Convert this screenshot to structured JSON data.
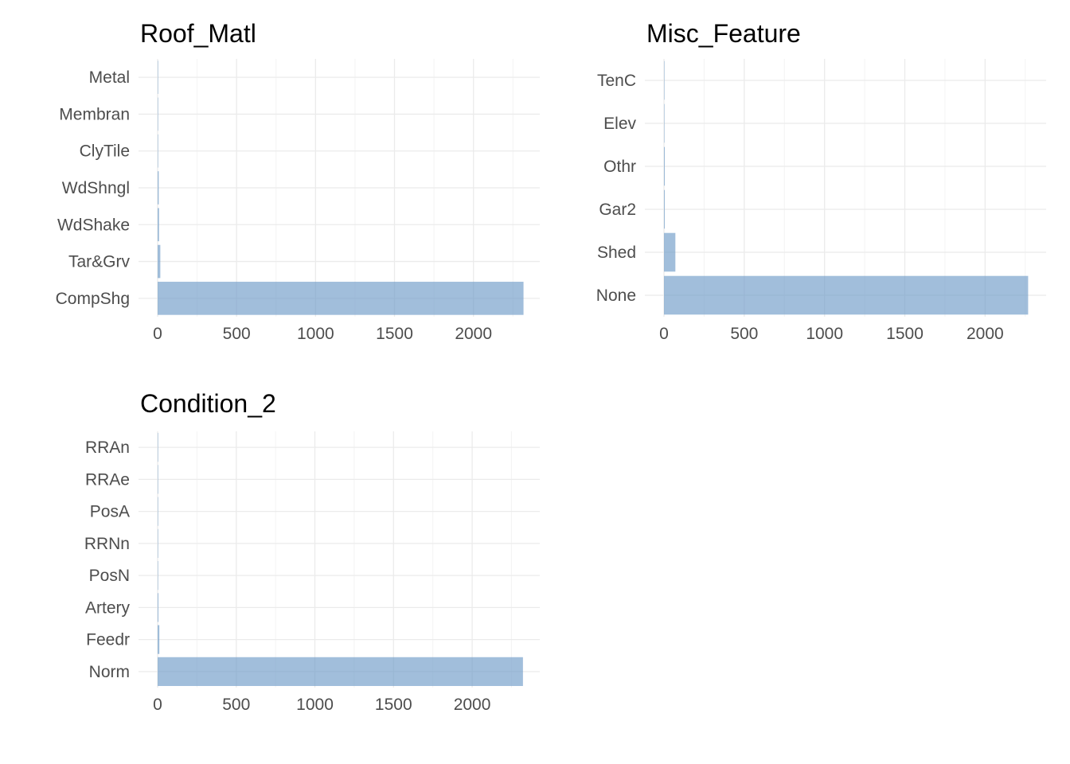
{
  "colors": {
    "bar": "#6f9bc8",
    "grid_major": "#ebebeb",
    "grid_minor": "#f4f4f4",
    "tick_label": "#4d4d4d",
    "title": "#000000",
    "background": "#ffffff"
  },
  "chart_data": [
    {
      "type": "bar",
      "orientation": "horizontal",
      "title": "Roof_Matl",
      "xlabel": "",
      "ylabel": "",
      "categories": [
        "Metal",
        "Membran",
        "ClyTile",
        "WdShngl",
        "WdShake",
        "Tar&Grv",
        "CompShg"
      ],
      "values": [
        1,
        1,
        1,
        7,
        9,
        17,
        2317
      ],
      "xlim": [
        0,
        2420
      ],
      "xticks": [
        0,
        500,
        1000,
        1500,
        2000
      ],
      "grid": true,
      "legend": "none"
    },
    {
      "type": "bar",
      "orientation": "horizontal",
      "title": "Misc_Feature",
      "xlabel": "",
      "ylabel": "",
      "categories": [
        "TenC",
        "Elev",
        "Othr",
        "Gar2",
        "Shed",
        "None"
      ],
      "values": [
        1,
        1,
        5,
        5,
        71,
        2268
      ],
      "xlim": [
        0,
        2380
      ],
      "xticks": [
        0,
        500,
        1000,
        1500,
        2000
      ],
      "grid": true,
      "legend": "none"
    },
    {
      "type": "bar",
      "orientation": "horizontal",
      "title": "Condition_2",
      "xlabel": "",
      "ylabel": "",
      "categories": [
        "RRAn",
        "RRAe",
        "PosA",
        "RRNn",
        "PosN",
        "Artery",
        "Feedr",
        "Norm"
      ],
      "values": [
        1,
        1,
        3,
        2,
        3,
        5,
        11,
        2323
      ],
      "xlim": [
        0,
        2430
      ],
      "xticks": [
        0,
        500,
        1000,
        1500,
        2000
      ],
      "grid": true,
      "legend": "none"
    }
  ]
}
